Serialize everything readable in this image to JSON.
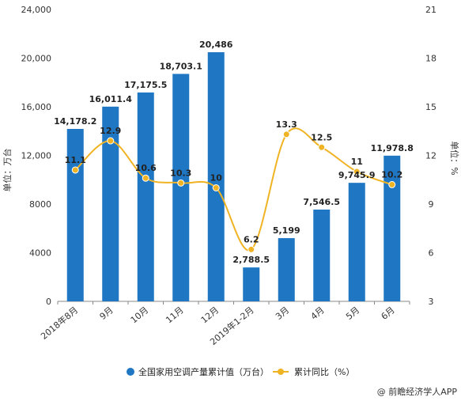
{
  "chart_data": {
    "type": "bar",
    "categories": [
      "2018年8月",
      "9月",
      "10月",
      "11月",
      "12月",
      "2019年1-2月",
      "3月",
      "4月",
      "5月",
      "6月"
    ],
    "series": [
      {
        "name": "全国家用空调产量累计值（万台）",
        "type": "bar",
        "axis": "left",
        "color": "#1f77c4",
        "values": [
          14178.2,
          16011.4,
          17175.5,
          18703.1,
          20486,
          2788.5,
          5199,
          7546.5,
          9745.9,
          11978.8
        ],
        "labels": [
          "14,178.2",
          "16,011.4",
          "17,175.5",
          "18,703.1",
          "20,486",
          "2,788.5",
          "5,199",
          "7,546.5",
          "9,745.9",
          "11,978.8"
        ]
      },
      {
        "name": "累计同比（%）",
        "type": "line",
        "axis": "right",
        "color": "#f0b323",
        "values": [
          11.1,
          12.9,
          10.6,
          10.3,
          10,
          6.2,
          13.3,
          12.5,
          11,
          10.2
        ],
        "labels": [
          "11.1",
          "12.9",
          "10.6",
          "10.3",
          "10",
          "6.2",
          "13.3",
          "12.5",
          "11",
          "10.2"
        ]
      }
    ],
    "ylabel_left": "单位：万台",
    "ylabel_right": "单位：%",
    "ylim_left": [
      0,
      24000
    ],
    "yticks_left": [
      "0",
      "4000",
      "8000",
      "12,000",
      "16,000",
      "20,000",
      "24,000"
    ],
    "ylim_right": [
      3,
      21
    ],
    "yticks_right": [
      "3",
      "6",
      "9",
      "12",
      "15",
      "18",
      "21"
    ],
    "grid": false,
    "legend_position": "bottom-center"
  },
  "source": "@ 前瞻经济学人APP"
}
